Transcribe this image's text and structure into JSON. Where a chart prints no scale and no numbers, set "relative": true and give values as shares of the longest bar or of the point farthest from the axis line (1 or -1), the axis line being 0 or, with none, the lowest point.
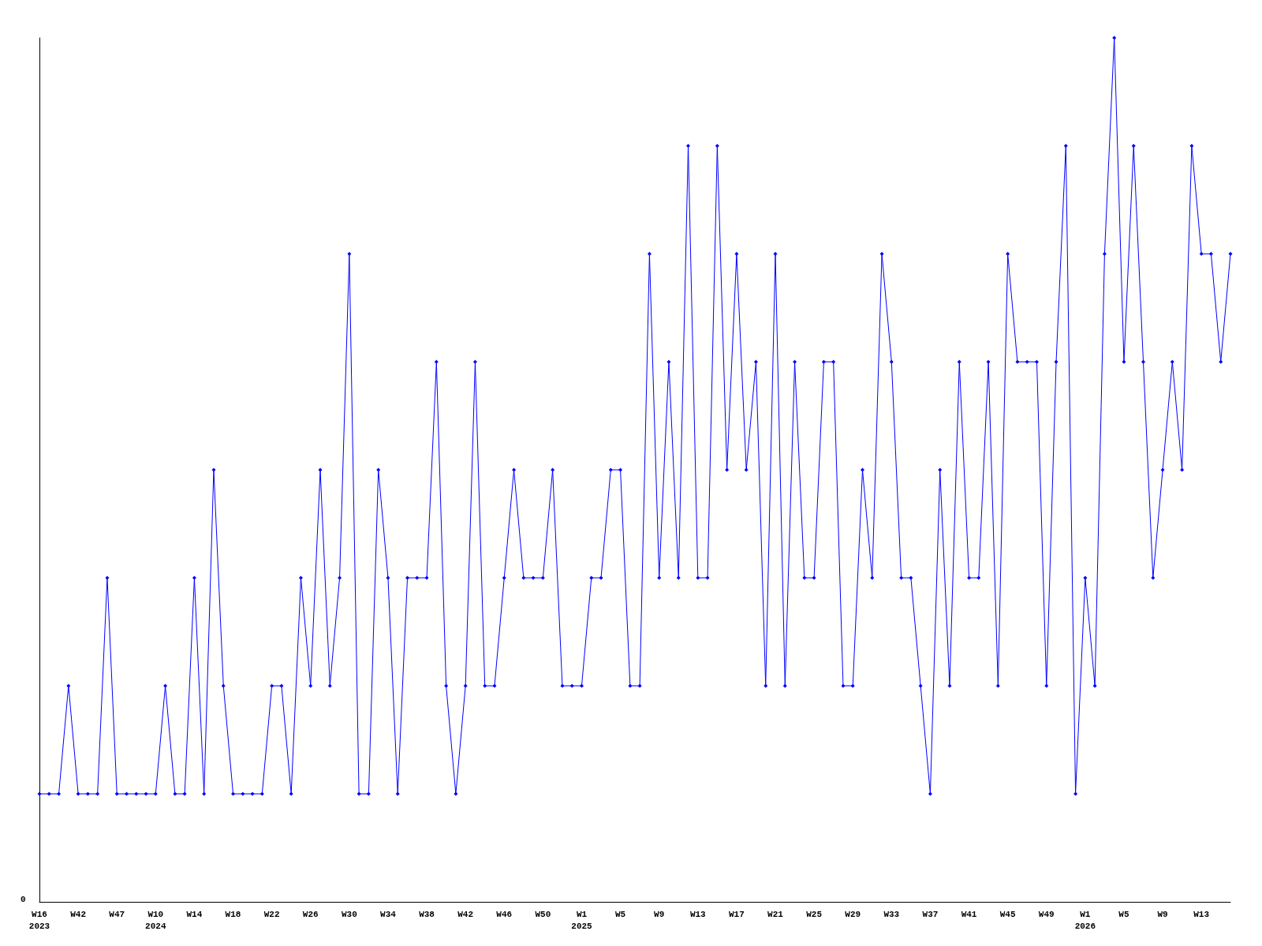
{
  "chart_data": {
    "type": "line",
    "relative": true,
    "annotations": [
      "0"
    ],
    "marker": "diamond",
    "line_style": "solid",
    "grid": false,
    "categories": [
      "W16\n2023",
      null,
      null,
      null,
      "W42",
      null,
      null,
      null,
      "W47",
      null,
      null,
      null,
      "W10\n2024",
      null,
      null,
      null,
      "W14",
      null,
      null,
      null,
      "W18",
      null,
      null,
      null,
      "W22",
      null,
      null,
      null,
      "W26",
      null,
      null,
      null,
      "W30",
      null,
      null,
      null,
      "W34",
      null,
      null,
      null,
      "W38",
      null,
      null,
      null,
      "W42",
      null,
      null,
      null,
      "W46",
      null,
      null,
      null,
      "W50",
      null,
      null,
      null,
      "W1\n2025",
      null,
      null,
      null,
      "W5",
      null,
      null,
      null,
      "W9",
      null,
      null,
      null,
      "W13",
      null,
      null,
      null,
      "W17",
      null,
      null,
      null,
      "W21",
      null,
      null,
      null,
      "W25",
      null,
      null,
      null,
      "W29",
      null,
      null,
      null,
      "W33",
      null,
      null,
      null,
      "W37",
      null,
      null,
      null,
      "W41",
      null,
      null,
      null,
      "W45",
      null,
      null,
      null,
      "W49",
      null,
      null,
      null,
      "W1\n2026",
      null,
      null,
      null,
      "W5",
      null,
      null,
      null,
      "W9",
      null,
      null,
      null,
      "W13",
      null,
      null,
      null
    ],
    "series": [
      {
        "color": "#0000ff",
        "values": [
          0.125,
          0.125,
          0.125,
          0.25,
          0.125,
          0.125,
          0.125,
          0.375,
          0.125,
          0.125,
          0.125,
          0.125,
          0.125,
          0.25,
          0.125,
          0.125,
          0.375,
          0.125,
          0.5,
          0.25,
          0.125,
          0.125,
          0.125,
          0.125,
          0.25,
          0.25,
          0.125,
          0.375,
          0.25,
          0.5,
          0.25,
          0.375,
          0.75,
          0.125,
          0.125,
          0.5,
          0.375,
          0.125,
          0.375,
          0.375,
          0.375,
          0.625,
          0.25,
          0.125,
          0.25,
          0.625,
          0.25,
          0.25,
          0.375,
          0.5,
          0.375,
          0.375,
          0.375,
          0.5,
          0.25,
          0.25,
          0.25,
          0.375,
          0.375,
          0.5,
          0.5,
          0.25,
          0.25,
          0.75,
          0.375,
          0.625,
          0.375,
          0.875,
          0.375,
          0.375,
          0.875,
          0.5,
          0.75,
          0.5,
          0.625,
          0.25,
          0.75,
          0.25,
          0.625,
          0.375,
          0.375,
          0.625,
          0.625,
          0.25,
          0.25,
          0.5,
          0.375,
          0.75,
          0.625,
          0.375,
          0.375,
          0.25,
          0.125,
          0.5,
          0.25,
          0.625,
          0.375,
          0.375,
          0.625,
          0.25,
          0.75,
          0.625,
          0.625,
          0.625,
          0.25,
          0.625,
          0.875,
          0.125,
          0.375,
          0.25,
          0.75,
          1,
          0.625,
          0.875,
          0.625,
          0.375,
          0.5,
          0.625,
          0.5,
          0.875,
          0.75,
          0.75,
          0.625,
          0.75
        ]
      }
    ]
  }
}
